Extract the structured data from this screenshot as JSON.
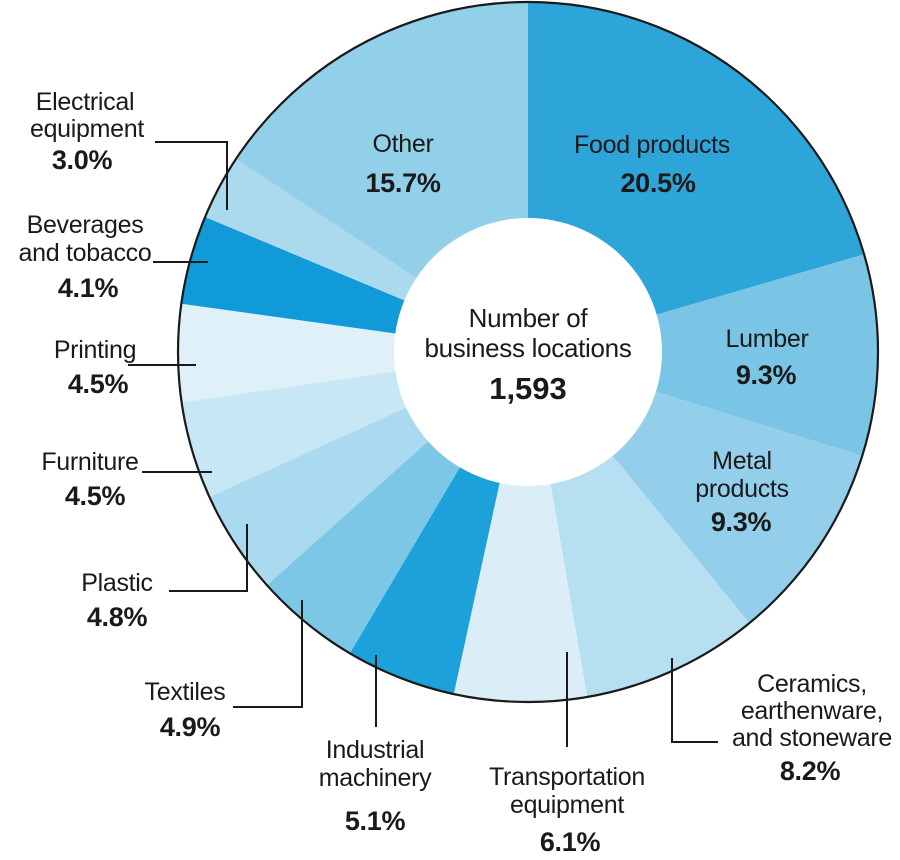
{
  "chart_data": {
    "type": "pie",
    "donut": true,
    "direction": "clockwise",
    "start_angle_deg": 0,
    "legend_position": "none",
    "outline_color": "#1a1a1a",
    "text_color": "#1a1a1a",
    "hole_color": "#ffffff",
    "center_label": {
      "line1": "Number of",
      "line2": "business locations",
      "value": "1,593"
    },
    "segments": [
      {
        "id": "food-products",
        "label": "Food products",
        "label_lines": [
          "Food products"
        ],
        "value": 20.5,
        "pct_label": "20.5%",
        "color": "#2ea5d9"
      },
      {
        "id": "lumber",
        "label": "Lumber",
        "label_lines": [
          "Lumber"
        ],
        "value": 9.3,
        "pct_label": "9.3%",
        "color": "#7ac5e6"
      },
      {
        "id": "metal-products",
        "label": "Metal products",
        "label_lines": [
          "Metal",
          "products"
        ],
        "value": 9.3,
        "pct_label": "9.3%",
        "color": "#93cfea"
      },
      {
        "id": "ceramics-earthenware-and-stoneware",
        "label": "Ceramics, earthenware, and stoneware",
        "label_lines": [
          "Ceramics,",
          "earthenware,",
          "and stoneware"
        ],
        "value": 8.2,
        "pct_label": "8.2%",
        "color": "#b6dff1"
      },
      {
        "id": "transportation-equipment",
        "label": "Transportation equipment",
        "label_lines": [
          "Transportation",
          "equipment"
        ],
        "value": 6.1,
        "pct_label": "6.1%",
        "color": "#dbeef8"
      },
      {
        "id": "industrial-machinery",
        "label": "Industrial machinery",
        "label_lines": [
          "Industrial",
          "machinery"
        ],
        "value": 5.1,
        "pct_label": "5.1%",
        "color": "#1ca1da"
      },
      {
        "id": "textiles",
        "label": "Textiles",
        "label_lines": [
          "Textiles"
        ],
        "value": 4.9,
        "pct_label": "4.9%",
        "color": "#7dc7e6"
      },
      {
        "id": "plastic",
        "label": "Plastic",
        "label_lines": [
          "Plastic"
        ],
        "value": 4.8,
        "pct_label": "4.8%",
        "color": "#a9daef"
      },
      {
        "id": "furniture",
        "label": "Furniture",
        "label_lines": [
          "Furniture"
        ],
        "value": 4.5,
        "pct_label": "4.5%",
        "color": "#c8e7f5"
      },
      {
        "id": "printing",
        "label": "Printing",
        "label_lines": [
          "Printing"
        ],
        "value": 4.5,
        "pct_label": "4.5%",
        "color": "#dff0f9"
      },
      {
        "id": "beverages-and-tobacco",
        "label": "Beverages and tobacco",
        "label_lines": [
          "Beverages",
          "and tobacco"
        ],
        "value": 4.1,
        "pct_label": "4.1%",
        "color": "#109bd8"
      },
      {
        "id": "electrical-equipment",
        "label": "Electrical equipment",
        "label_lines": [
          "Electrical",
          "equipment"
        ],
        "value": 3.0,
        "pct_label": "3.0%",
        "color": "#abdaee"
      },
      {
        "id": "other",
        "label": "Other",
        "label_lines": [
          "Other"
        ],
        "value": 15.7,
        "pct_label": "15.7%",
        "color": "#92cfe8"
      }
    ]
  }
}
